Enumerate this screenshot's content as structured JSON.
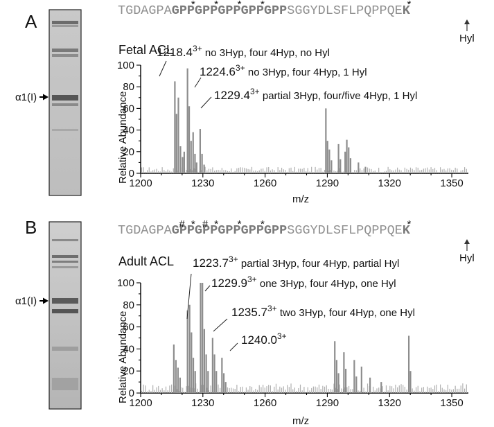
{
  "chart_data": [
    {
      "type": "bar",
      "panel": "A",
      "title": "Fetal  ACL",
      "xlabel": "m/z",
      "ylabel": "Relative Abundance",
      "xlim": [
        1200,
        1358
      ],
      "ylim": [
        0,
        100
      ],
      "xticks": [
        "1200",
        "1230",
        "1260",
        "1290",
        "1320",
        "1350"
      ],
      "yticks": [
        "0",
        "20",
        "40",
        "60",
        "80",
        "100"
      ],
      "sequence_prefix": "TGDAGPA",
      "sequence_bold": [
        "G",
        "P",
        "P",
        "G",
        "P",
        "P",
        "G",
        "P",
        "P",
        "G",
        "P",
        "P",
        "G",
        "P",
        "P"
      ],
      "sequence_suffix": "SGGYDLSFLPQPPQE",
      "sequence_end": "K",
      "sequence_marks": {
        "bold_index_2": "*",
        "bold_index_5": "*",
        "bold_index_8": "*",
        "bold_index_11": "*",
        "end": "*"
      },
      "hyl_label": "Hyl",
      "gel_label": "α1(I)",
      "annotations": [
        {
          "mz": "1218.4",
          "charge": "3+",
          "text": " no 3Hyp, four 4Hyp, no Hyl"
        },
        {
          "mz": "1224.6",
          "charge": "3+",
          "text": " no 3Hyp, four 4Hyp, 1 Hyl"
        },
        {
          "mz": "1229.4",
          "charge": "3+",
          "text": " partial 3Hyp, four/five 4Hyp, 1 Hyl"
        }
      ],
      "peaks": [
        {
          "x": 1216.5,
          "y": 85
        },
        {
          "x": 1217.3,
          "y": 55
        },
        {
          "x": 1218.2,
          "y": 70
        },
        {
          "x": 1219.2,
          "y": 25
        },
        {
          "x": 1220.2,
          "y": 15
        },
        {
          "x": 1221.0,
          "y": 20
        },
        {
          "x": 1222.6,
          "y": 97
        },
        {
          "x": 1223.4,
          "y": 62
        },
        {
          "x": 1224.3,
          "y": 30
        },
        {
          "x": 1225.3,
          "y": 38
        },
        {
          "x": 1226.2,
          "y": 18
        },
        {
          "x": 1227.0,
          "y": 10
        },
        {
          "x": 1228.7,
          "y": 41
        },
        {
          "x": 1229.6,
          "y": 18
        },
        {
          "x": 1230.6,
          "y": 8
        },
        {
          "x": 1289.3,
          "y": 60
        },
        {
          "x": 1290.1,
          "y": 30
        },
        {
          "x": 1291.0,
          "y": 22
        },
        {
          "x": 1292.0,
          "y": 12
        },
        {
          "x": 1295.4,
          "y": 27
        },
        {
          "x": 1296.3,
          "y": 13
        },
        {
          "x": 1298.6,
          "y": 20
        },
        {
          "x": 1299.4,
          "y": 31
        },
        {
          "x": 1300.3,
          "y": 24
        },
        {
          "x": 1301.2,
          "y": 14
        },
        {
          "x": 1305.0,
          "y": 10
        },
        {
          "x": 1308.4,
          "y": 6
        }
      ]
    },
    {
      "type": "bar",
      "panel": "B",
      "title": "Adult ACL",
      "xlabel": "m/z",
      "ylabel": "Relative Abundance",
      "xlim": [
        1200,
        1358
      ],
      "ylim": [
        0,
        100
      ],
      "xticks": [
        "1200",
        "1230",
        "1260",
        "1290",
        "1320",
        "1350"
      ],
      "yticks": [
        "0",
        "20",
        "40",
        "60",
        "80",
        "100"
      ],
      "sequence_prefix": "TGDAGPA",
      "sequence_bold": [
        "G",
        "P",
        "P",
        "G",
        "P",
        "P",
        "G",
        "P",
        "P",
        "G",
        "P",
        "P",
        "G",
        "P",
        "P"
      ],
      "sequence_suffix": "SGGYDLSFLPQPPQE",
      "sequence_end": "K",
      "sequence_marks": {
        "bold_index_1": "#",
        "bold_index_2": "*",
        "bold_index_4": "#",
        "bold_index_5": "*",
        "bold_index_8": "*",
        "bold_index_11": "*",
        "end": "*"
      },
      "hyl_label": "Hyl",
      "gel_label": "α1(I)",
      "annotations": [
        {
          "mz": "1223.7",
          "charge": "3+",
          "text": " partial 3Hyp, four 4Hyp, partial Hyl"
        },
        {
          "mz": "1229.9",
          "charge": "3+",
          "text": " one 3Hyp, four 4Hyp, one Hyl"
        },
        {
          "mz": "1235.7",
          "charge": "3+",
          "text": " two 3Hyp, four 4Hyp, one Hyl"
        },
        {
          "mz": "1240.0",
          "charge": "3+",
          "text": ""
        }
      ],
      "peaks": [
        {
          "x": 1216.0,
          "y": 44
        },
        {
          "x": 1217.0,
          "y": 30
        },
        {
          "x": 1218.0,
          "y": 23
        },
        {
          "x": 1219.0,
          "y": 14
        },
        {
          "x": 1222.6,
          "y": 75
        },
        {
          "x": 1223.6,
          "y": 80
        },
        {
          "x": 1224.5,
          "y": 55
        },
        {
          "x": 1225.4,
          "y": 32
        },
        {
          "x": 1226.3,
          "y": 20
        },
        {
          "x": 1228.9,
          "y": 100
        },
        {
          "x": 1229.8,
          "y": 100
        },
        {
          "x": 1230.7,
          "y": 58
        },
        {
          "x": 1231.6,
          "y": 35
        },
        {
          "x": 1232.5,
          "y": 20
        },
        {
          "x": 1234.7,
          "y": 50
        },
        {
          "x": 1235.6,
          "y": 35
        },
        {
          "x": 1236.5,
          "y": 20
        },
        {
          "x": 1239.2,
          "y": 32
        },
        {
          "x": 1240.1,
          "y": 18
        },
        {
          "x": 1241.0,
          "y": 10
        },
        {
          "x": 1293.6,
          "y": 47
        },
        {
          "x": 1294.5,
          "y": 30
        },
        {
          "x": 1295.4,
          "y": 18
        },
        {
          "x": 1298.0,
          "y": 37
        },
        {
          "x": 1298.9,
          "y": 22
        },
        {
          "x": 1303.0,
          "y": 30
        },
        {
          "x": 1304.0,
          "y": 15
        },
        {
          "x": 1306.5,
          "y": 24
        },
        {
          "x": 1310.6,
          "y": 14
        },
        {
          "x": 1316.0,
          "y": 10
        },
        {
          "x": 1329.3,
          "y": 52
        },
        {
          "x": 1330.1,
          "y": 20
        }
      ]
    }
  ]
}
